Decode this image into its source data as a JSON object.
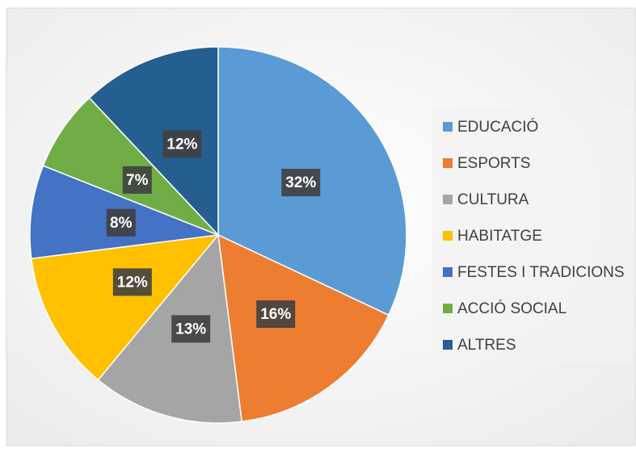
{
  "chart_data": {
    "type": "pie",
    "categories": [
      "EDUCACIÓ",
      "ESPORTS",
      "CULTURA",
      "HABITATGE",
      "FESTES I TRADICIONS",
      "ACCIÓ SOCIAL",
      "ALTRES"
    ],
    "values": [
      32,
      16,
      13,
      12,
      8,
      7,
      12
    ],
    "value_labels": [
      "32%",
      "16%",
      "13%",
      "12%",
      "8%",
      "7%",
      "12%"
    ],
    "colors": [
      "#5b9bd5",
      "#ed7d31",
      "#a5a5a5",
      "#ffc000",
      "#4472c4",
      "#70ad47",
      "#255e91"
    ],
    "legend": "right"
  }
}
